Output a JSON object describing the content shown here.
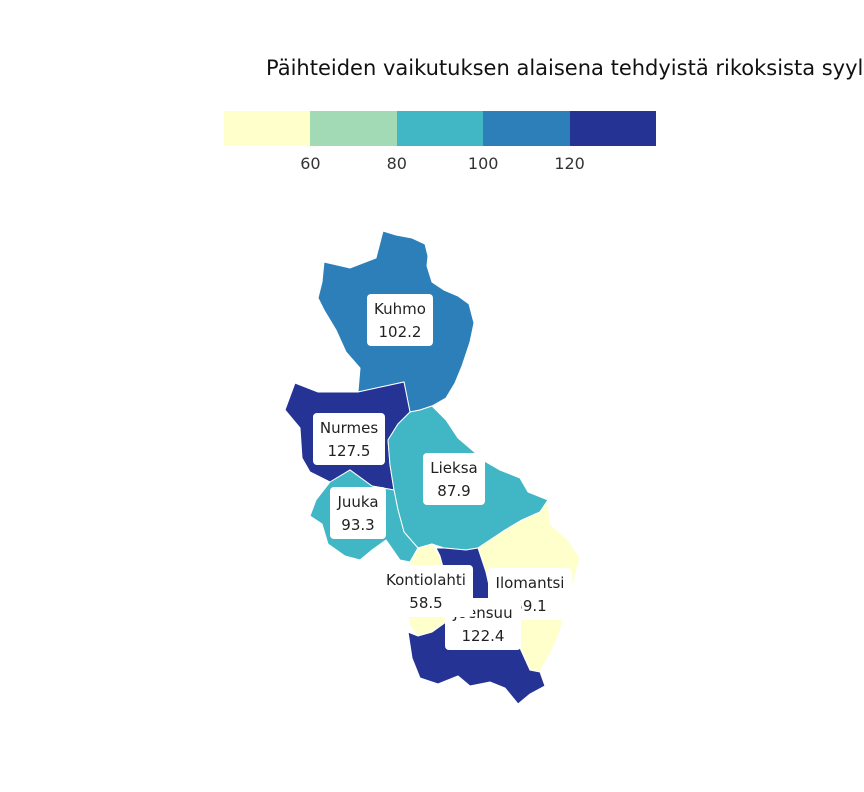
{
  "title": "Päihteiden vaikutuksen alaisena tehdyistä rikoksista syylli",
  "legend": {
    "colors": [
      "#ffffcc",
      "#a1dab4",
      "#41b6c4",
      "#2c7fb8",
      "#253494"
    ],
    "ticks": [
      "60",
      "80",
      "100",
      "120"
    ]
  },
  "regions": [
    {
      "name": "Kuhmo",
      "value": "102.2",
      "color": "#2c7fb8"
    },
    {
      "name": "Nurmes",
      "value": "127.5",
      "color": "#253494"
    },
    {
      "name": "Lieksa",
      "value": "87.9",
      "color": "#41b6c4"
    },
    {
      "name": "Juuka",
      "value": "93.3",
      "color": "#41b6c4"
    },
    {
      "name": "Kontiolahti",
      "value": "58.5",
      "color": "#ffffcc"
    },
    {
      "name": "Ilomantsi",
      "value": "59.1",
      "color": "#ffffcc"
    },
    {
      "name": "Joensuu",
      "value": "122.4",
      "color": "#253494"
    }
  ]
}
